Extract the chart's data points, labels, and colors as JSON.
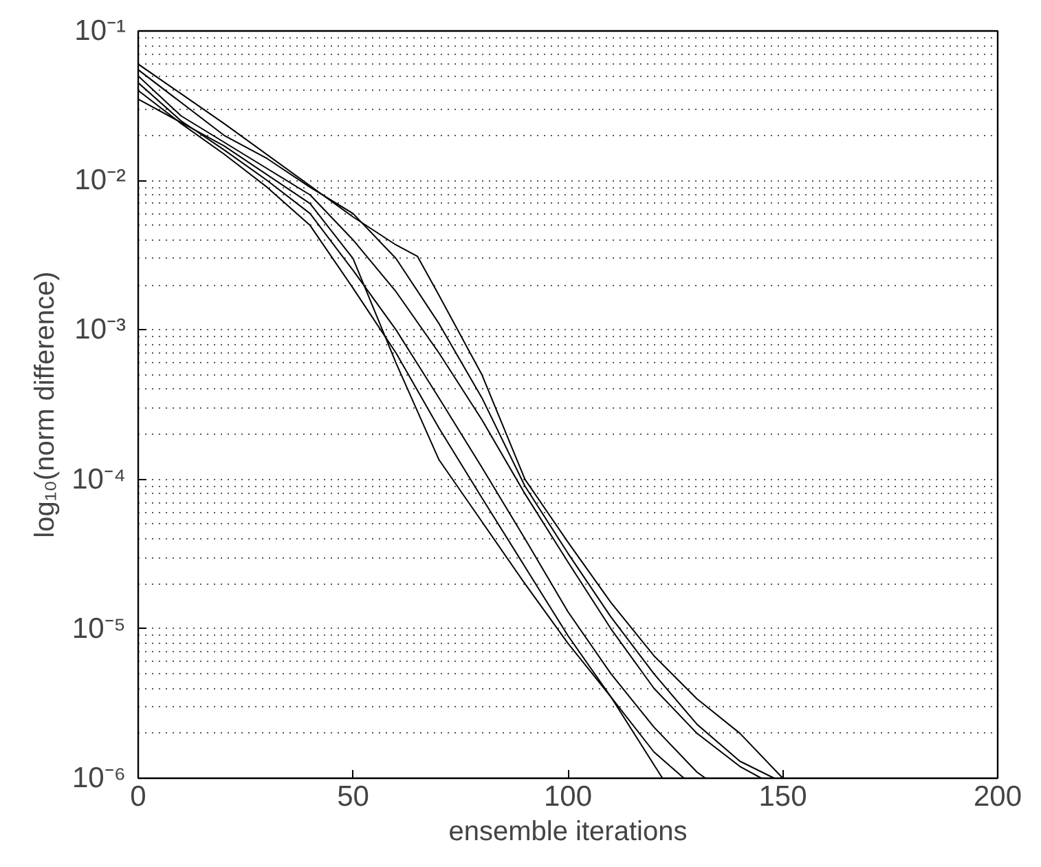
{
  "chart_data": {
    "type": "line",
    "xlabel": "ensemble iterations",
    "ylabel": "log₁₀(norm difference)",
    "log": "y",
    "grid": true,
    "line_style": "solid",
    "marker": "none",
    "xlim": [
      0,
      200
    ],
    "xticks": [
      0,
      50,
      100,
      150,
      200
    ],
    "ylim": [
      1e-06,
      0.1
    ],
    "yticks": [
      {
        "value": 1e-06,
        "label": "10⁻⁶"
      },
      {
        "value": 1e-05,
        "label": "10⁻⁵"
      },
      {
        "value": 0.0001,
        "label": "10⁻⁴"
      },
      {
        "value": 0.001,
        "label": "10⁻³"
      },
      {
        "value": 0.01,
        "label": "10⁻²"
      },
      {
        "value": 0.1,
        "label": "10⁻¹"
      }
    ],
    "series": [
      {
        "color": "#000000",
        "x": [
          0,
          20,
          40,
          50,
          60,
          70,
          80,
          90,
          100,
          110,
          122
        ],
        "values": [
          0.035,
          0.017,
          0.007,
          0.003,
          0.0006,
          0.000135,
          5.2e-05,
          2e-05,
          8e-06,
          3.5e-06,
          1e-06
        ]
      },
      {
        "color": "#000000",
        "x": [
          0,
          10,
          20,
          30,
          40,
          50,
          60,
          70,
          80,
          90,
          100,
          110,
          120,
          127
        ],
        "values": [
          0.04,
          0.024,
          0.015,
          0.009,
          0.005,
          0.0019,
          0.0007,
          0.00022,
          7.5e-05,
          2.6e-05,
          9e-06,
          3.5e-06,
          1.5e-06,
          1e-06
        ]
      },
      {
        "color": "#000000",
        "x": [
          0,
          10,
          20,
          30,
          40,
          50,
          60,
          70,
          80,
          90,
          100,
          110,
          120,
          130,
          132
        ],
        "values": [
          0.045,
          0.025,
          0.016,
          0.01,
          0.006,
          0.0025,
          0.001,
          0.00035,
          0.00012,
          4e-05,
          1.3e-05,
          5e-06,
          2.2e-06,
          1.1e-06,
          1e-06
        ]
      },
      {
        "color": "#000000",
        "x": [
          0,
          10,
          20,
          30,
          40,
          50,
          60,
          70,
          80,
          90,
          100,
          110,
          120,
          130,
          140,
          145
        ],
        "values": [
          0.05,
          0.027,
          0.018,
          0.012,
          0.008,
          0.004,
          0.0018,
          0.0007,
          0.00025,
          8e-05,
          2.8e-05,
          1e-05,
          4e-06,
          2e-06,
          1.2e-06,
          1e-06
        ]
      },
      {
        "color": "#000000",
        "x": [
          0,
          20,
          30,
          40,
          50,
          60,
          70,
          80,
          90,
          100,
          110,
          120,
          130,
          140,
          148
        ],
        "values": [
          0.055,
          0.02,
          0.014,
          0.009,
          0.006,
          0.003,
          0.0011,
          0.00035,
          9e-05,
          3.2e-05,
          1.2e-05,
          5e-06,
          2.3e-06,
          1.3e-06,
          1e-06
        ]
      },
      {
        "color": "#000000",
        "x": [
          0,
          20,
          50,
          60,
          65,
          70,
          80,
          90,
          100,
          110,
          120,
          130,
          140,
          150
        ],
        "values": [
          0.06,
          0.024,
          0.0057,
          0.0037,
          0.0031,
          0.0017,
          0.0005,
          0.0001,
          3.8e-05,
          1.5e-05,
          6.6e-06,
          3.4e-06,
          2e-06,
          1e-06
        ]
      }
    ]
  }
}
